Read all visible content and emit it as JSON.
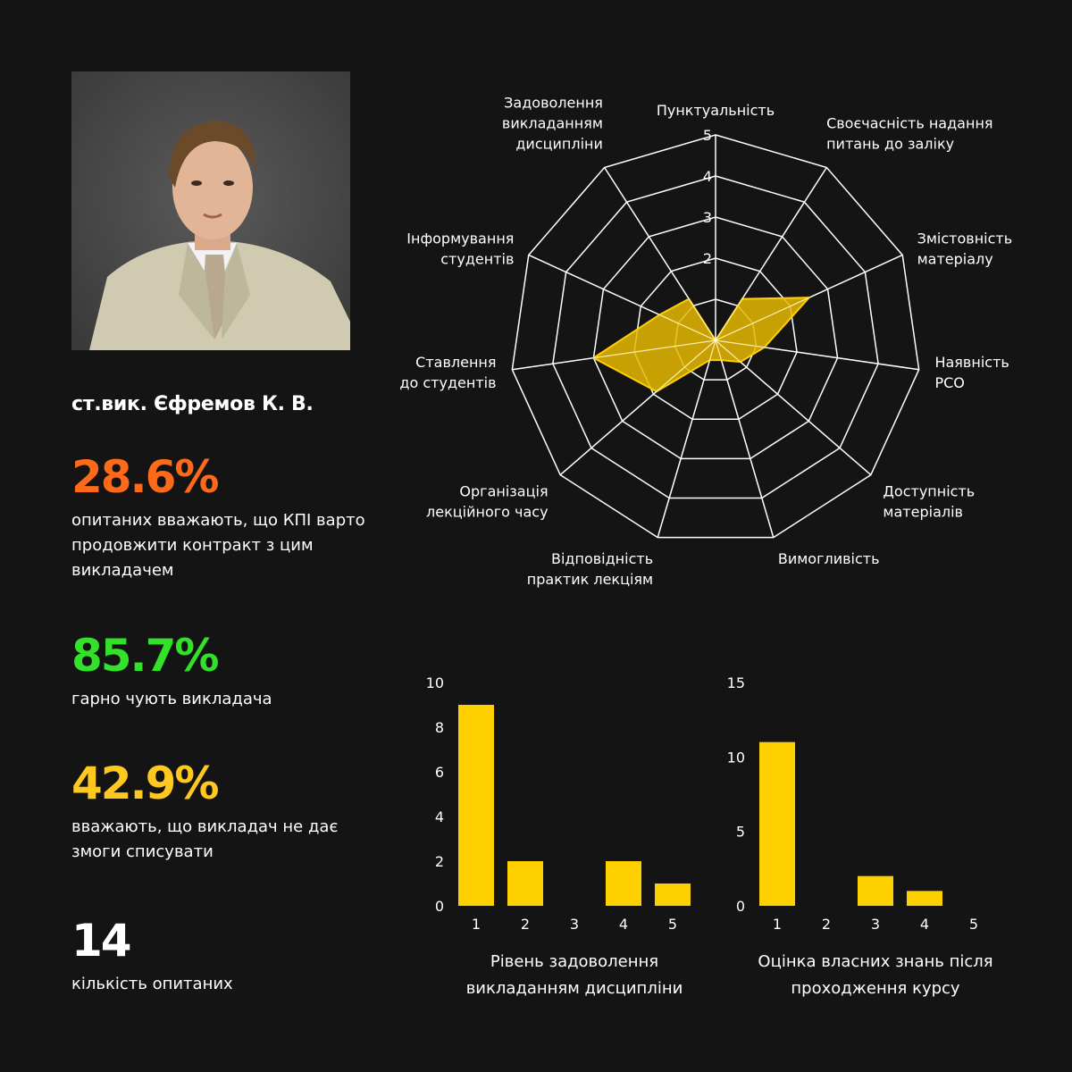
{
  "instructor": {
    "name": "ст.вик. Єфремов К. В."
  },
  "stats": [
    {
      "value": "28.6%",
      "color": "#ff6a1a",
      "text": "опитаних вважають, що КПІ варто продовжити контракт з цим викладачем"
    },
    {
      "value": "85.7%",
      "color": "#33e02a",
      "text": "гарно чують викладача"
    },
    {
      "value": "42.9%",
      "color": "#ffc81e",
      "text": "вважають, що викладач не дає змоги списувати"
    },
    {
      "value": "14",
      "color": "#ffffff",
      "text": "кількість опитаних"
    }
  ],
  "chart_data": [
    {
      "type": "radar",
      "rmax": 5,
      "ticks": [
        "2",
        "3",
        "4",
        "5"
      ],
      "axes": [
        {
          "label": [
            "Пунктуальність"
          ],
          "value": 0
        },
        {
          "label": [
            "Своєчасність надання",
            "питань до заліку"
          ],
          "value": 1.2
        },
        {
          "label": [
            "Змістовність",
            "матеріалу"
          ],
          "value": 2.5
        },
        {
          "label": [
            "Наявність",
            "РСО"
          ],
          "value": 1.2
        },
        {
          "label": [
            "Доступність",
            "матеріалів"
          ],
          "value": 0.8
        },
        {
          "label": [
            "Вимогливість"
          ],
          "value": 0.5
        },
        {
          "label": [
            "Відповідність",
            "практик лекціям"
          ],
          "value": 0.5
        },
        {
          "label": [
            "Організація",
            "лекційного часу"
          ],
          "value": 1.9
        },
        {
          "label": [
            "Ставлення",
            "до студентів"
          ],
          "value": 3.0
        },
        {
          "label": [
            "Інформування",
            "студентів"
          ],
          "value": 1.5
        },
        {
          "label": [
            "Задоволення",
            "викладанням",
            "дисципліни"
          ],
          "value": 1.2
        }
      ],
      "fill_color": "#e6b800",
      "stroke_color": "#ffd000"
    },
    {
      "type": "bar",
      "categories": [
        "1",
        "2",
        "3",
        "4",
        "5"
      ],
      "values": [
        9,
        2,
        0,
        2,
        1
      ],
      "ylim": [
        0,
        10
      ],
      "yticks": [
        0,
        2,
        4,
        6,
        8,
        10
      ],
      "xlabel": [
        "Рівень задоволення",
        "викладанням дисципліни"
      ],
      "color": "#ffd000"
    },
    {
      "type": "bar",
      "categories": [
        "1",
        "2",
        "3",
        "4",
        "5"
      ],
      "values": [
        11,
        0,
        2,
        1,
        0
      ],
      "ylim": [
        0,
        15
      ],
      "yticks": [
        0,
        5,
        10,
        15
      ],
      "xlabel": [
        "Оцінка власних знань після",
        "проходження курсу"
      ],
      "color": "#ffd000"
    }
  ]
}
